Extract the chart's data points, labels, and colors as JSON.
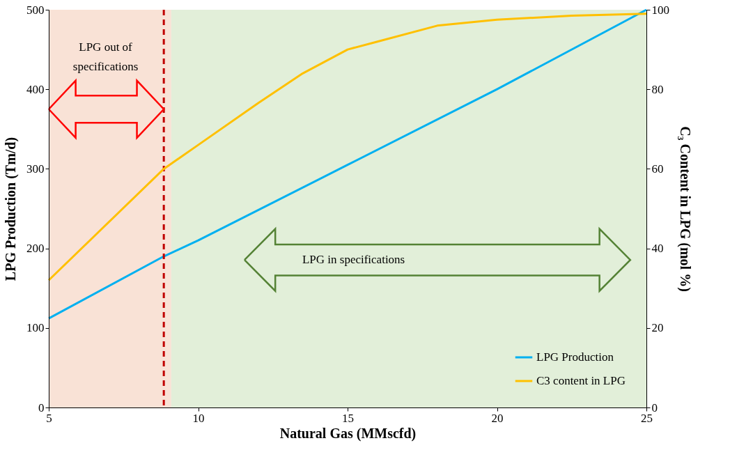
{
  "chart_data": {
    "type": "line",
    "xlabel": "Natural Gas (MMscfd)",
    "ylabel": "LPG  Production (Tm/d)",
    "y2label": "C₃ Content in LPG (mol %)",
    "xlim": [
      5,
      25
    ],
    "xticks": [
      5,
      10,
      15,
      20,
      25
    ],
    "ylim": [
      0,
      500
    ],
    "yticks": [
      0,
      100,
      200,
      300,
      400,
      500
    ],
    "y2lim": [
      0,
      100
    ],
    "y2ticks": [
      0,
      20,
      40,
      60,
      80,
      100
    ],
    "series": [
      {
        "name": "LPG Production",
        "color": "#00b0f0",
        "x": [
          5,
          8.85,
          10,
          15,
          20,
          25
        ],
        "values": [
          112,
          190,
          210,
          305,
          400,
          500
        ]
      },
      {
        "name": "C3 content in LPG",
        "color": "#ffc000",
        "axis": "y2",
        "x": [
          5,
          8.85,
          10,
          12,
          13.5,
          15,
          16,
          18,
          20,
          22.5,
          25
        ],
        "values": [
          32,
          60,
          66,
          76.5,
          84,
          90,
          92,
          96,
          97.5,
          98.5,
          99
        ]
      }
    ],
    "ref_lines": [
      {
        "axis": "x",
        "value": 8.85,
        "color": "#c00000",
        "line_style": "dashed"
      }
    ],
    "bands": [
      {
        "axis": "x",
        "from": 5,
        "to": 9.1,
        "color": "#f9e2d6"
      },
      {
        "axis": "x",
        "from": 9.1,
        "to": 25,
        "color": "#e2efd9"
      }
    ],
    "annotations": [
      "LPG out of specifications",
      "LPG in specifications"
    ],
    "legend": "bottom right",
    "grid": false,
    "marker": "none",
    "line_style": "solid"
  }
}
